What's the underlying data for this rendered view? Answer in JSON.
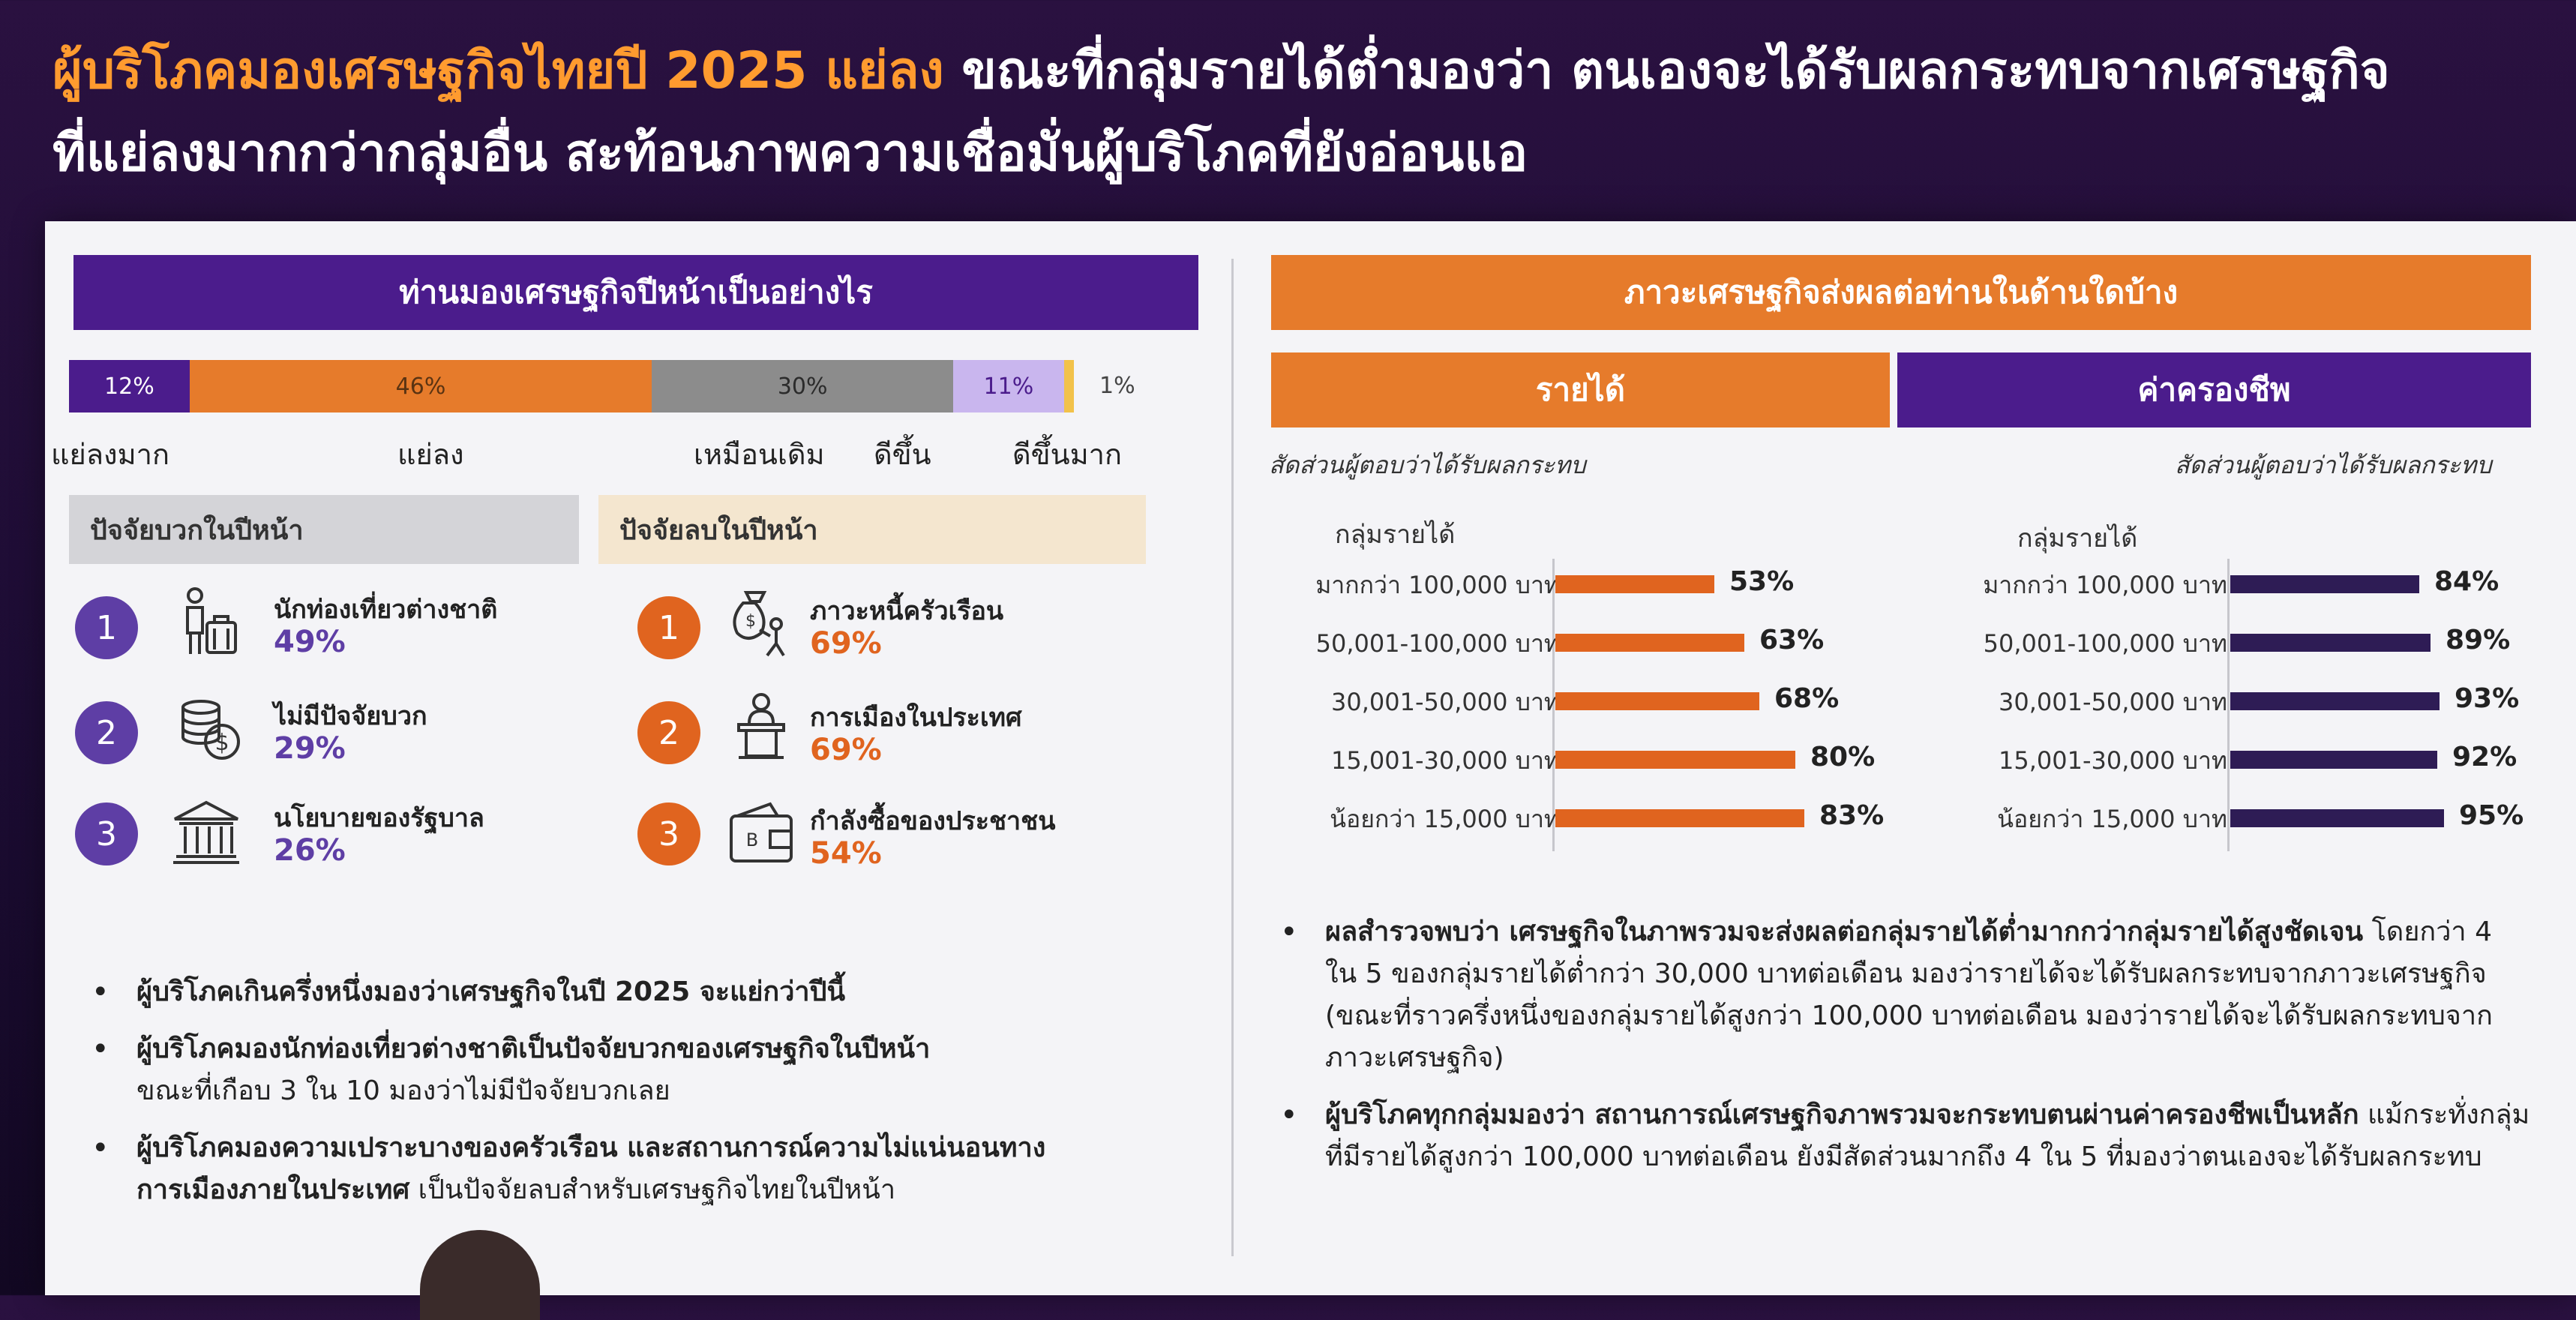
{
  "headline": {
    "part1": "ผู้บริโภคมองเศรษฐกิจไทยปี 2025 แย่ลง",
    "part2": " ขณะที่กลุ่มรายได้ต่ำมองว่า ตนเองจะได้รับผลกระทบจากเศรษฐกิจ",
    "line2": "ที่แย่ลงมากกว่ากลุ่มอื่น สะท้อนภาพความเชื่อมั่นผู้บริโภคที่ยังอ่อนแอ",
    "colors": {
      "highlight": "#ff9b2f",
      "text": "#ffffff"
    }
  },
  "left": {
    "title": "ท่านมองเศรษฐกิจปีหน้าเป็นอย่างไร",
    "positive_header": "ปัจจัยบวกในปีหน้า",
    "negative_header": "ปัจจัยลบในปีหน้า",
    "positive": [
      {
        "num": "1",
        "label": "นักท่องเที่ยวต่างชาติ",
        "pct": "49%",
        "icon": "tourist-icon"
      },
      {
        "num": "2",
        "label": "ไม่มีปัจจัยบวก",
        "pct": "29%",
        "icon": "coins-icon"
      },
      {
        "num": "3",
        "label": "นโยบายของรัฐบาล",
        "pct": "26%",
        "icon": "government-building-icon"
      }
    ],
    "negative": [
      {
        "num": "1",
        "label": "ภาวะหนี้ครัวเรือน",
        "pct": "69%",
        "icon": "debt-bag-icon"
      },
      {
        "num": "2",
        "label": "การเมืองในประเทศ",
        "pct": "69%",
        "icon": "podium-speaker-icon"
      },
      {
        "num": "3",
        "label": "กำลังซื้อของประชาชน",
        "pct": "54%",
        "icon": "wallet-icon"
      }
    ],
    "bullets": [
      {
        "text": "ผู้บริโภคเกินครึ่งหนึ่งมองว่าเศรษฐกิจในปี 2025 จะแย่กว่าปีนี้",
        "sub": ""
      },
      {
        "text": "ผู้บริโภคมองนักท่องเที่ยวต่างชาติเป็นปัจจัยบวกของเศรษฐกิจในปีหน้า",
        "sub": "ขณะที่เกือบ 3 ใน 10 มองว่าไม่มีปัจจัยบวกเลย"
      },
      {
        "text": "ผู้บริโภคมองความเปราะบางของครัวเรือน และสถานการณ์ความไม่แน่นอนทาง",
        "text2": "การเมืองภายในประเทศ",
        "sub": " เป็นปัจจัยลบสำหรับเศรษฐกิจไทยในปีหน้า"
      }
    ]
  },
  "right": {
    "title": "ภาวะเศรษฐกิจส่งผลต่อท่านในด้านใดบ้าง",
    "income_tab": "รายได้",
    "cost_tab": "ค่าครองชีพ",
    "note_left": "สัดส่วนผู้ตอบว่าได้รับผลกระทบ",
    "note_right": "สัดส่วนผู้ตอบว่าได้รับผลกระทบ",
    "group_left": "กลุ่มรายได้",
    "group_right": "กลุ่มรายได้",
    "bullets": [
      {
        "strong": "ผลสำรวจพบว่า เศรษฐกิจในภาพรวมจะส่งผลต่อกลุ่มรายได้ต่ำมากกว่ากลุ่มรายได้สูงชัดเจน",
        "rest": " โดยกว่า 4 ใน 5 ของกลุ่มรายได้ต่ำกว่า 30,000 บาทต่อเดือน มองว่ารายได้จะได้รับผลกระทบจากภาวะเศรษฐกิจ (ขณะที่ราวครึ่งหนึ่งของกลุ่มรายได้สูงกว่า 100,000 บาทต่อเดือน มองว่ารายได้จะได้รับผลกระทบจากภาวะเศรษฐกิจ)"
      },
      {
        "strong": "ผู้บริโภคทุกกลุ่มมองว่า สถานการณ์เศรษฐกิจภาพรวมจะกระทบตนผ่านค่าครองชีพเป็นหลัก",
        "rest": " แม้กระทั่งกลุ่มที่มีรายได้สูงกว่า 100,000 บาทต่อเดือน ยังมีสัดส่วนมากถึง 4 ใน 5 ที่มองว่าตนเองจะได้รับผลกระทบ"
      }
    ]
  },
  "chart_data": [
    {
      "type": "bar",
      "stacked": true,
      "orientation": "horizontal",
      "title": "ท่านมองเศรษฐกิจปีหน้าเป็นอย่างไร",
      "categories": [
        "แย่ลงมาก",
        "แย่ลง",
        "เหมือนเดิม",
        "ดีขึ้น",
        "ดีขึ้นมาก"
      ],
      "values": [
        12,
        46,
        30,
        11,
        1
      ],
      "labels": [
        "12%",
        "46%",
        "30%",
        "11%",
        "1%"
      ],
      "colors": [
        "#4b1c8c",
        "#e67b2b",
        "#8c8c8c",
        "#c9b6ee",
        "#f2c24a"
      ],
      "label_colors": [
        "#ffffff",
        "#5a3312",
        "#2b2b2b",
        "#4b1c8c",
        "#444444"
      ]
    },
    {
      "type": "bar",
      "orientation": "horizontal",
      "title": "รายได้",
      "categories": [
        "มากกว่า 100,000 บาท",
        "50,001-100,000 บาท",
        "30,001-50,000 บาท",
        "15,001-30,000 บาท",
        "น้อยกว่า 15,000 บาท"
      ],
      "values": [
        53,
        63,
        68,
        80,
        83
      ],
      "labels": [
        "53%",
        "63%",
        "68%",
        "80%",
        "83%"
      ],
      "color": "#e0641f"
    },
    {
      "type": "bar",
      "orientation": "horizontal",
      "title": "ค่าครองชีพ",
      "categories": [
        "มากกว่า 100,000 บาท",
        "50,001-100,000 บาท",
        "30,001-50,000 บาท",
        "15,001-30,000 บาท",
        "น้อยกว่า 15,000 บาท"
      ],
      "values": [
        84,
        89,
        93,
        92,
        95
      ],
      "labels": [
        "84%",
        "89%",
        "93%",
        "92%",
        "95%"
      ],
      "color": "#2e1c55"
    }
  ]
}
